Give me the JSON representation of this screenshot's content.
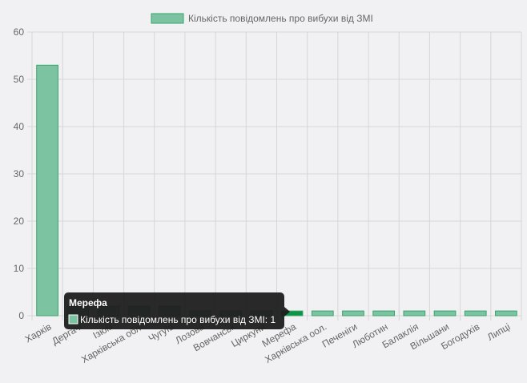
{
  "chart_data": {
    "type": "bar",
    "categories": [
      "Харків",
      "Дергачі",
      "Ізюм",
      "Харківська обл.",
      "Чугуїв",
      "Лозова",
      "Вовчанськ",
      "Циркуни",
      "Мерефа",
      "Харківська оол.",
      "Печеніги",
      "Люботин",
      "Балаклія",
      "Вільшани",
      "Богодухів",
      "Липці"
    ],
    "series": [
      {
        "name": "Кількість повідомлень про вибухи від ЗМІ",
        "values": [
          53,
          2,
          2,
          2,
          2,
          1,
          1,
          1,
          1,
          1,
          1,
          1,
          1,
          1,
          1,
          1
        ]
      }
    ],
    "ylim": [
      0,
      60
    ],
    "yticks": [
      "0",
      "10",
      "20",
      "30",
      "40",
      "50",
      "60"
    ],
    "grid": true,
    "legend": "top",
    "highlighted_index": 8,
    "colors": {
      "bar_fill": "#7cc4a1",
      "bar_stroke": "#3aa46d",
      "bar_hover_fill": "#0d9447",
      "grid": "#d6d6d6",
      "axis_text": "#666666",
      "tooltip_bg": "#1e1e1e"
    },
    "tooltip": {
      "title": "Мерефа",
      "text": "Кількість повідомлень про вибухи від ЗМІ: 1"
    }
  }
}
